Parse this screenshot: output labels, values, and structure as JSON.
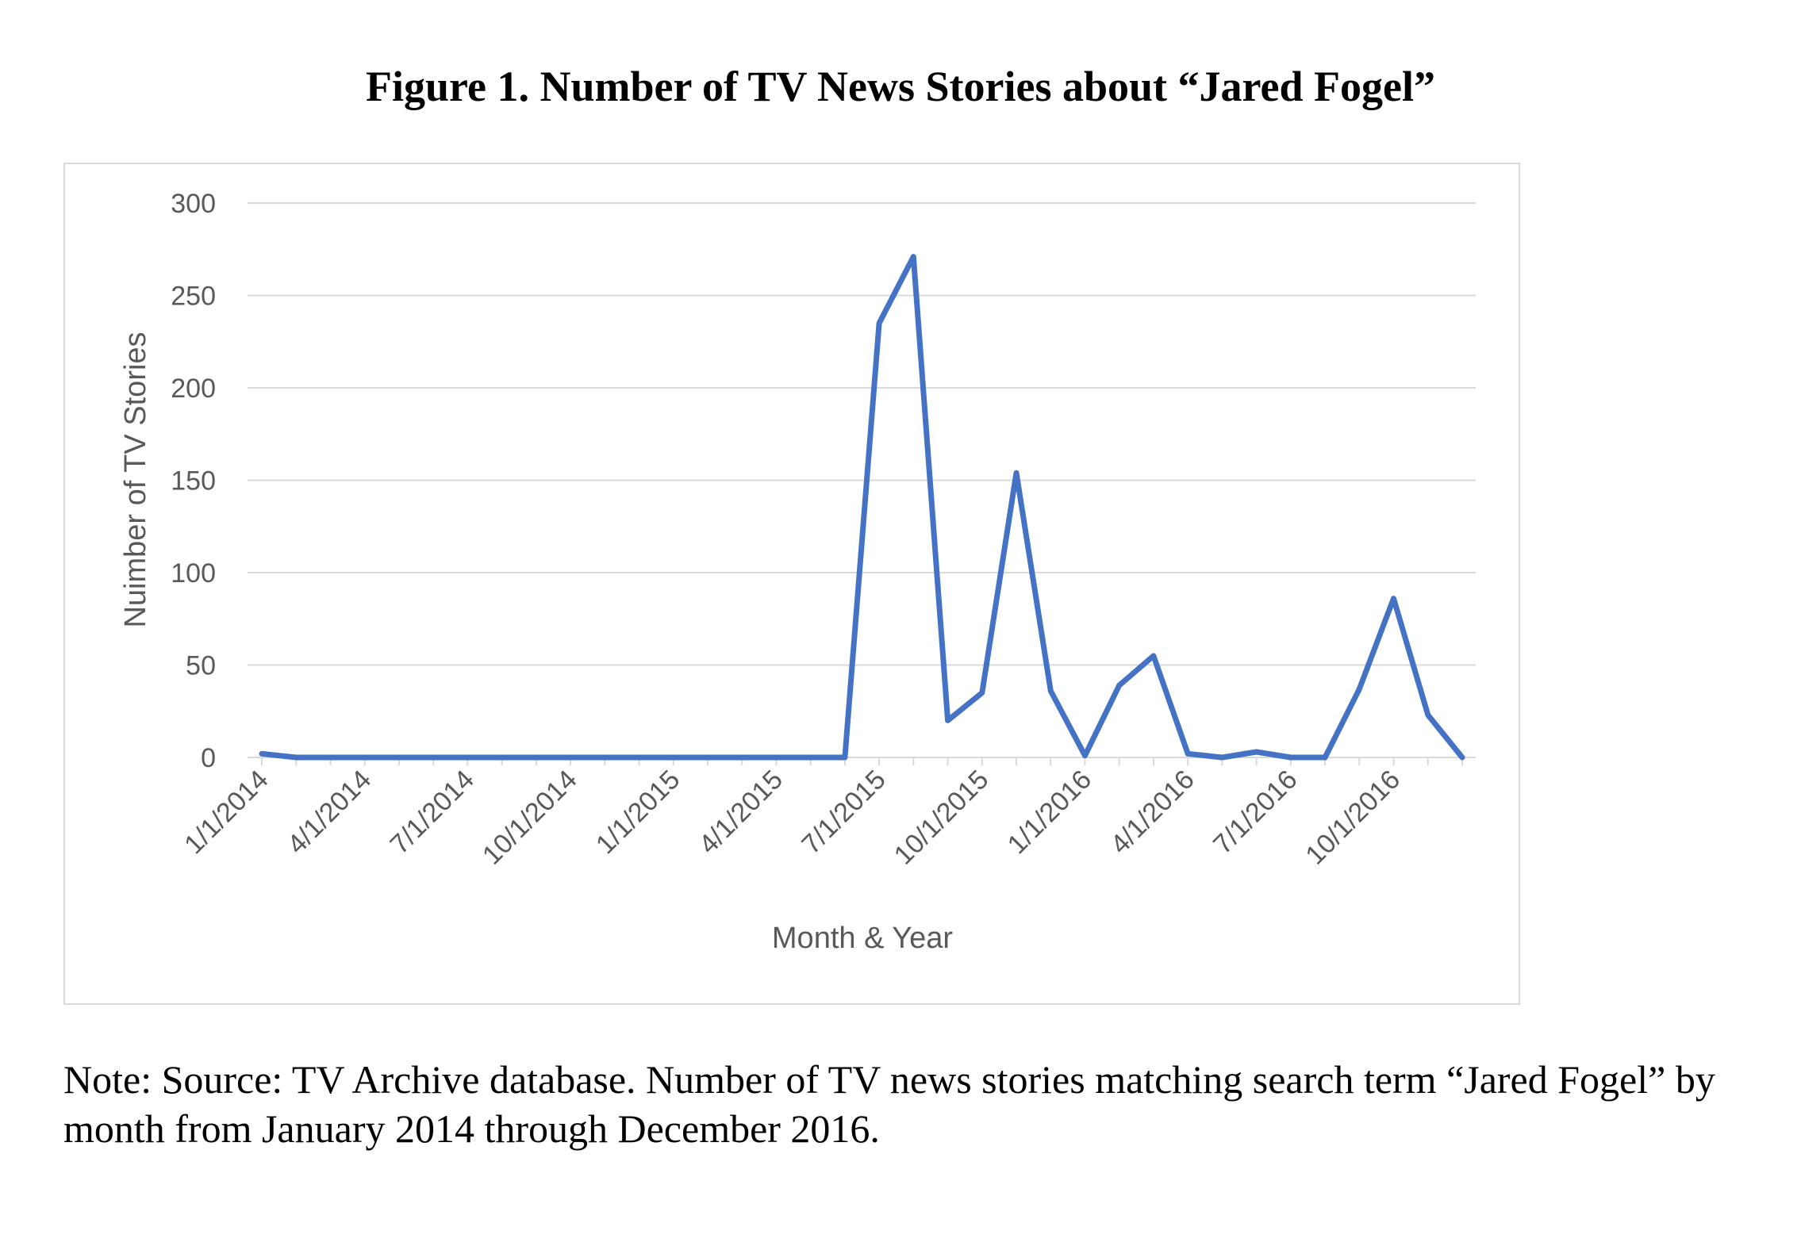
{
  "figure_title": "Figure 1. Number of TV News Stories about “Jared Fogel”",
  "note": "Note: Source: TV Archive database. Number of TV news stories matching search term “Jared Fogel” by month from January 2014 through December 2016.",
  "colors": {
    "line": "#4472c4",
    "grid": "#d9d9d9",
    "text": "#595959"
  },
  "chart_data": {
    "type": "line",
    "xlabel": "Month & Year",
    "ylabel": "Nuimber of TV Stories",
    "ylim": [
      0,
      300
    ],
    "yticks": [
      0,
      50,
      100,
      150,
      200,
      250,
      300
    ],
    "xtick_labels": [
      "1/1/2014",
      "4/1/2014",
      "7/1/2014",
      "10/1/2014",
      "1/1/2015",
      "4/1/2015",
      "7/1/2015",
      "10/1/2015",
      "1/1/2016",
      "4/1/2016",
      "7/1/2016",
      "10/1/2016"
    ],
    "grid": true,
    "legend": "none",
    "x": [
      "1/1/2014",
      "2/1/2014",
      "3/1/2014",
      "4/1/2014",
      "5/1/2014",
      "6/1/2014",
      "7/1/2014",
      "8/1/2014",
      "9/1/2014",
      "10/1/2014",
      "11/1/2014",
      "12/1/2014",
      "1/1/2015",
      "2/1/2015",
      "3/1/2015",
      "4/1/2015",
      "5/1/2015",
      "6/1/2015",
      "7/1/2015",
      "8/1/2015",
      "9/1/2015",
      "10/1/2015",
      "11/1/2015",
      "12/1/2015",
      "1/1/2016",
      "2/1/2016",
      "3/1/2016",
      "4/1/2016",
      "5/1/2016",
      "6/1/2016",
      "7/1/2016",
      "8/1/2016",
      "9/1/2016",
      "10/1/2016",
      "11/1/2016",
      "12/1/2016"
    ],
    "series": [
      {
        "values": [
          2,
          0,
          0,
          0,
          0,
          0,
          0,
          0,
          0,
          0,
          0,
          0,
          0,
          0,
          0,
          0,
          0,
          0,
          235,
          271,
          20,
          35,
          154,
          36,
          1,
          39,
          55,
          2,
          0,
          3,
          0,
          0,
          37,
          86,
          23,
          0
        ]
      }
    ]
  }
}
